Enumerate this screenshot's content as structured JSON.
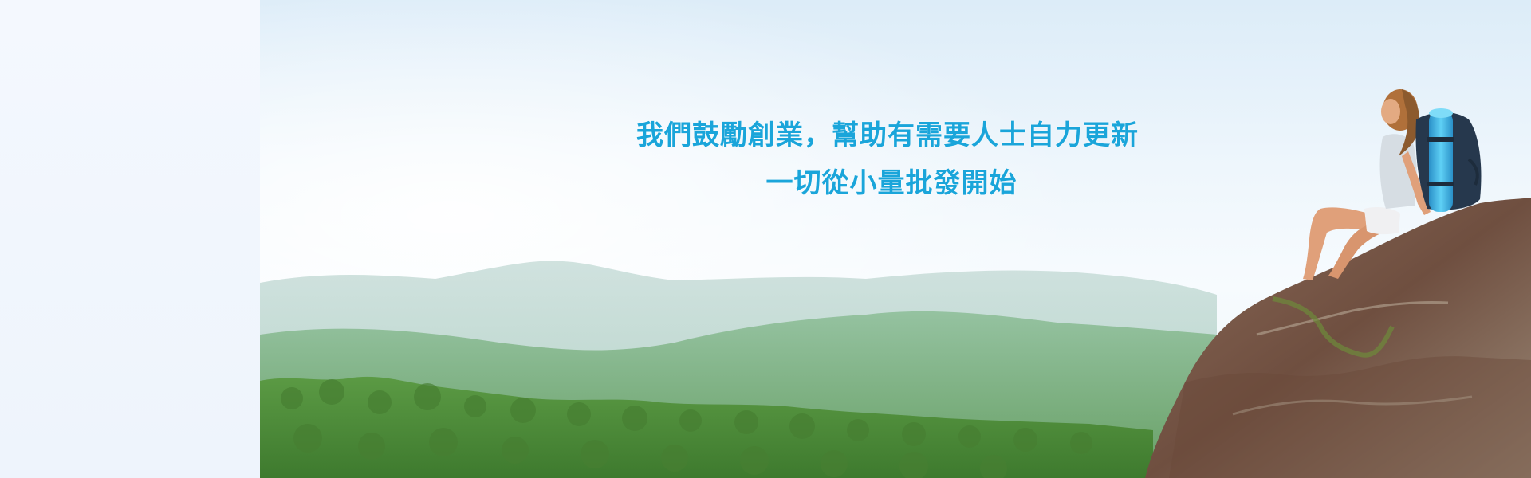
{
  "banner": {
    "tagline_line1": "我們鼓勵創業，幫助有需要人士自力更新",
    "tagline_line2": "一切從小量批發開始",
    "text_color": "#1aa5da",
    "left_panel_color": "#f3f7fd"
  },
  "scene": {
    "sky_top_color": "#e6f2fb",
    "sky_bottom_color": "#f7fbfe",
    "forest_color": "#4f8a3a",
    "rock_color": "#7a5a48",
    "backpack_color": "#3cb5ea"
  }
}
